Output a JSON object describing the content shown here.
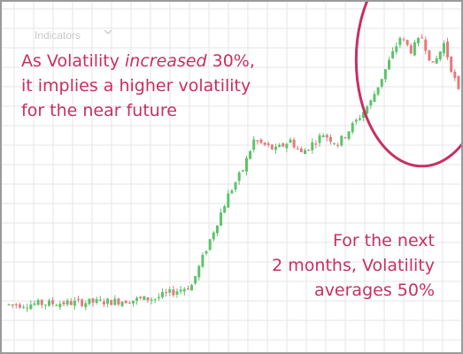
{
  "header": {
    "indicators_label": "Indicators"
  },
  "annotations": {
    "left_line1_prefix": "As Volatility ",
    "left_line1_em": "increased",
    "left_line1_suffix": " 30%,",
    "left_line2": "it implies a higher volatility",
    "left_line3": "for the near future",
    "right_line1": "For the next",
    "right_line2": "2 months, Volatility",
    "right_line3": "averages 50%"
  },
  "colors": {
    "up": "#5cc36b",
    "down": "#e57a7c",
    "annotation": "#c8305f",
    "grid": "#e6e6e6"
  },
  "chart_data": {
    "type": "candlestick",
    "title": "",
    "xlabel": "",
    "ylabel": "",
    "ylim": [
      0,
      100
    ],
    "grid": true,
    "price_path": [
      [
        0,
        12
      ],
      [
        28,
        13
      ],
      [
        40,
        14
      ],
      [
        50,
        18
      ],
      [
        56,
        35
      ],
      [
        60,
        46
      ],
      [
        64,
        54
      ],
      [
        67,
        63
      ],
      [
        73,
        60
      ],
      [
        77,
        63
      ],
      [
        80,
        59
      ],
      [
        83,
        62
      ],
      [
        86,
        65
      ],
      [
        90,
        62
      ],
      [
        95,
        69
      ],
      [
        99,
        75
      ],
      [
        103,
        85
      ],
      [
        107,
        95
      ],
      [
        110,
        91
      ],
      [
        113,
        95
      ],
      [
        116,
        86
      ],
      [
        119,
        93
      ],
      [
        123,
        78
      ]
    ],
    "highlight": {
      "shape": "ellipse",
      "x_center": 113,
      "y_center": 88,
      "x_radius": 18,
      "y_radius": 33,
      "color": "#c8305f"
    }
  }
}
